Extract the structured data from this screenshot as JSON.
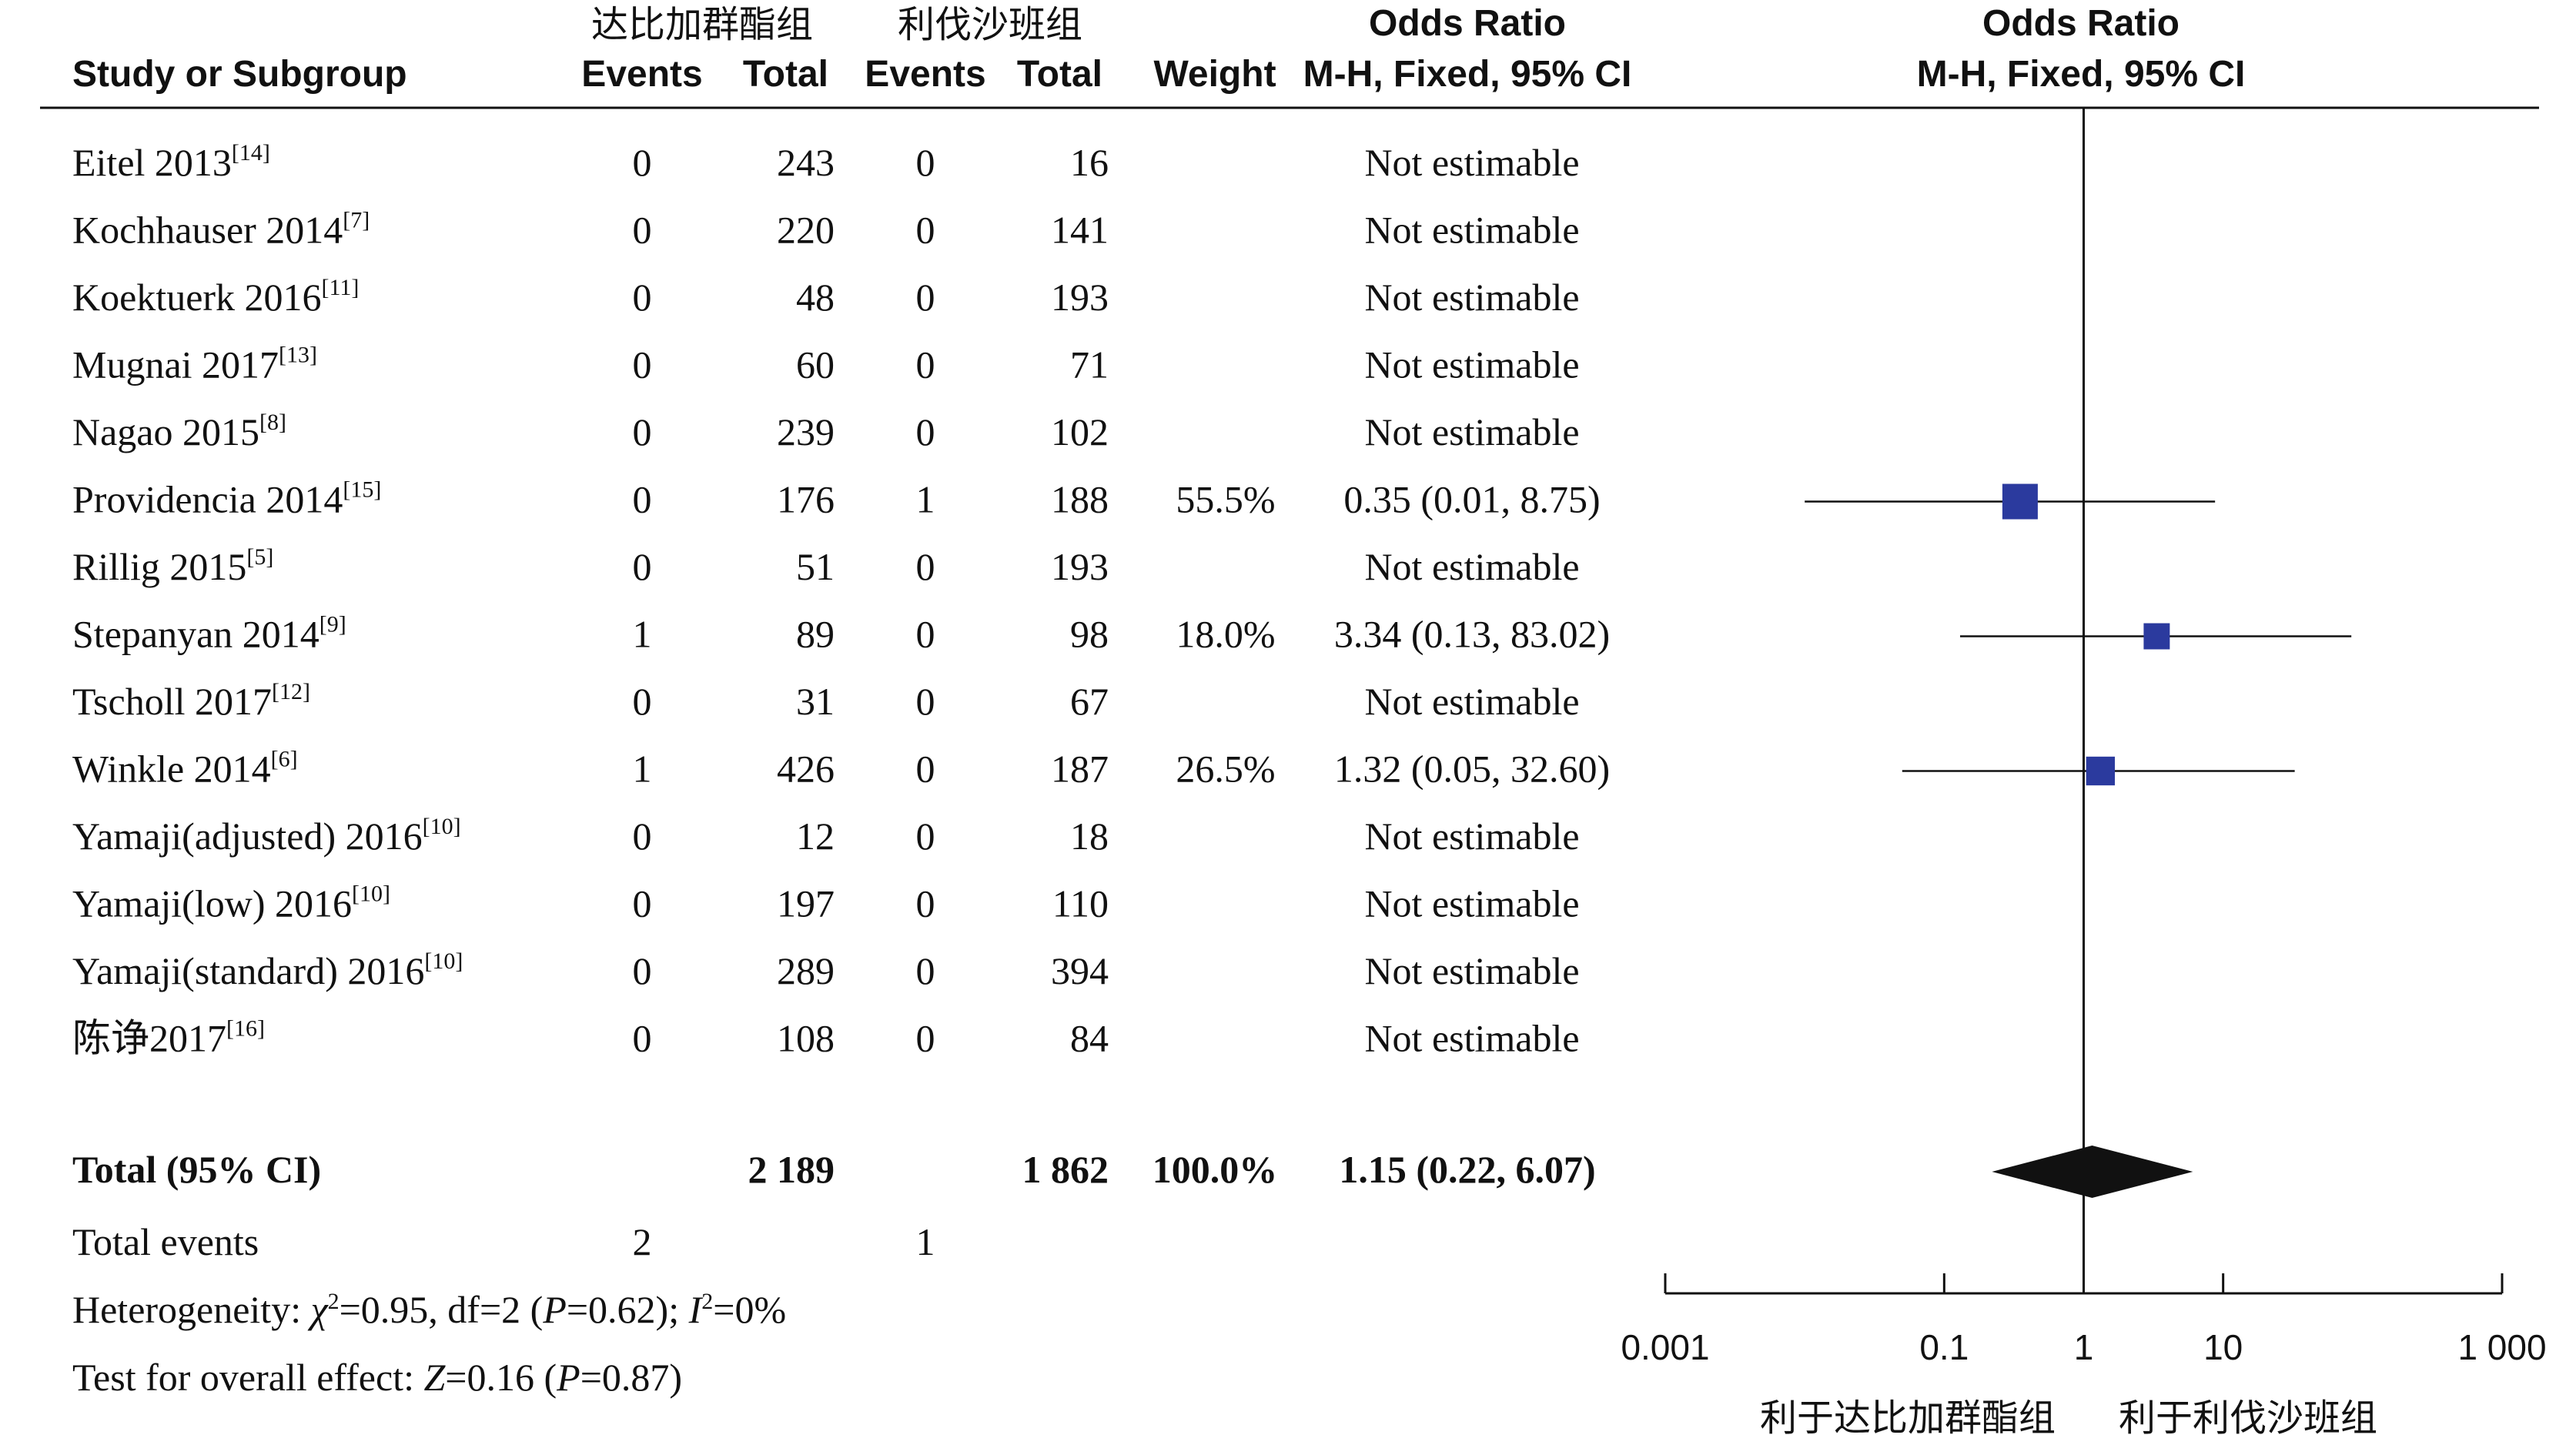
{
  "header": {
    "group1_name": "达比加群酯组",
    "group2_name": "利伐沙班组",
    "study_col": "Study or Subgroup",
    "events_label": "Events",
    "total_label": "Total",
    "weight_label": "Weight",
    "or_title": "Odds Ratio",
    "or_method": "M-H, Fixed, 95% CI",
    "plot_title": "Odds Ratio",
    "plot_method": "M-H, Fixed, 95% CI"
  },
  "studies": [
    {
      "name": "Eitel 2013",
      "ref": "[14]",
      "e1": "0",
      "t1": "243",
      "e2": "0",
      "t2": "16",
      "weight": "",
      "ci_text": "Not estimable"
    },
    {
      "name": "Kochhauser 2014",
      "ref": "[7]",
      "e1": "0",
      "t1": "220",
      "e2": "0",
      "t2": "141",
      "weight": "",
      "ci_text": "Not estimable"
    },
    {
      "name": "Koektuerk 2016",
      "ref": "[11]",
      "e1": "0",
      "t1": "48",
      "e2": "0",
      "t2": "193",
      "weight": "",
      "ci_text": "Not estimable"
    },
    {
      "name": "Mugnai 2017",
      "ref": "[13]",
      "e1": "0",
      "t1": "60",
      "e2": "0",
      "t2": "71",
      "weight": "",
      "ci_text": "Not estimable"
    },
    {
      "name": "Nagao 2015",
      "ref": "[8]",
      "e1": "0",
      "t1": "239",
      "e2": "0",
      "t2": "102",
      "weight": "",
      "ci_text": "Not estimable"
    },
    {
      "name": "Providencia 2014",
      "ref": "[15]",
      "e1": "0",
      "t1": "176",
      "e2": "1",
      "t2": "188",
      "weight": "55.5%",
      "ci_text": "0.35 (0.01, 8.75)"
    },
    {
      "name": "Rillig 2015",
      "ref": "[5]",
      "e1": "0",
      "t1": "51",
      "e2": "0",
      "t2": "193",
      "weight": "",
      "ci_text": "Not estimable"
    },
    {
      "name": "Stepanyan 2014",
      "ref": "[9]",
      "e1": "1",
      "t1": "89",
      "e2": "0",
      "t2": "98",
      "weight": "18.0%",
      "ci_text": "3.34 (0.13, 83.02)"
    },
    {
      "name": "Tscholl 2017",
      "ref": "[12]",
      "e1": "0",
      "t1": "31",
      "e2": "0",
      "t2": "67",
      "weight": "",
      "ci_text": "Not estimable"
    },
    {
      "name": "Winkle 2014",
      "ref": "[6]",
      "e1": "1",
      "t1": "426",
      "e2": "0",
      "t2": "187",
      "weight": "26.5%",
      "ci_text": "1.32 (0.05, 32.60)"
    },
    {
      "name": "Yamaji(adjusted) 2016",
      "ref": "[10]",
      "e1": "0",
      "t1": "12",
      "e2": "0",
      "t2": "18",
      "weight": "",
      "ci_text": "Not estimable"
    },
    {
      "name": "Yamaji(low) 2016",
      "ref": "[10]",
      "e1": "0",
      "t1": "197",
      "e2": "0",
      "t2": "110",
      "weight": "",
      "ci_text": "Not estimable"
    },
    {
      "name": "Yamaji(standard) 2016",
      "ref": "[10]",
      "e1": "0",
      "t1": "289",
      "e2": "0",
      "t2": "394",
      "weight": "",
      "ci_text": "Not estimable"
    },
    {
      "name": "陈诤2017",
      "ref": "[16]",
      "e1": "0",
      "t1": "108",
      "e2": "0",
      "t2": "84",
      "weight": "",
      "ci_text": "Not estimable"
    }
  ],
  "total": {
    "label": "Total (95% CI)",
    "t1": "2 189",
    "t2": "1 862",
    "weight": "100.0%",
    "ci_text": "1.15 (0.22, 6.07)"
  },
  "total_events": {
    "label": "Total events",
    "e1": "2",
    "e2": "1"
  },
  "heterogeneity": {
    "prefix": "Heterogeneity: ",
    "chi_sym": "χ",
    "chi_val": "=0.95, df=2 (",
    "p_sym": "P",
    "p_val": "=0.62); ",
    "i_sym": "I",
    "i_val": "=0%",
    "sq": "2"
  },
  "overall_effect": {
    "prefix": "Test for overall effect: ",
    "z_sym": "Z",
    "z_val": "=0.16 (",
    "p_sym": "P",
    "p_val": "=0.87)"
  },
  "axis": {
    "ticks": [
      0.001,
      0.1,
      1,
      10,
      1000
    ],
    "tick_labels": [
      "0.001",
      "0.1",
      "1",
      "10",
      "1 000"
    ],
    "favours_left": "利于达比加群酯组",
    "favours_right": "利于利伐沙班组"
  },
  "colors": {
    "square": "#2b3a9e",
    "diamond": "#111111",
    "line": "#111111"
  },
  "chart_data": {
    "type": "forest",
    "scale": "log",
    "xlim": [
      0.001,
      1000
    ],
    "studies": [
      {
        "name": "Providencia 2014",
        "or": 0.35,
        "lower": 0.01,
        "upper": 8.75,
        "weight": 55.5
      },
      {
        "name": "Stepanyan 2014",
        "or": 3.34,
        "lower": 0.13,
        "upper": 83.02,
        "weight": 18.0
      },
      {
        "name": "Winkle 2014",
        "or": 1.32,
        "lower": 0.05,
        "upper": 32.6,
        "weight": 26.5
      }
    ],
    "pooled": {
      "or": 1.15,
      "lower": 0.22,
      "upper": 6.07
    }
  }
}
